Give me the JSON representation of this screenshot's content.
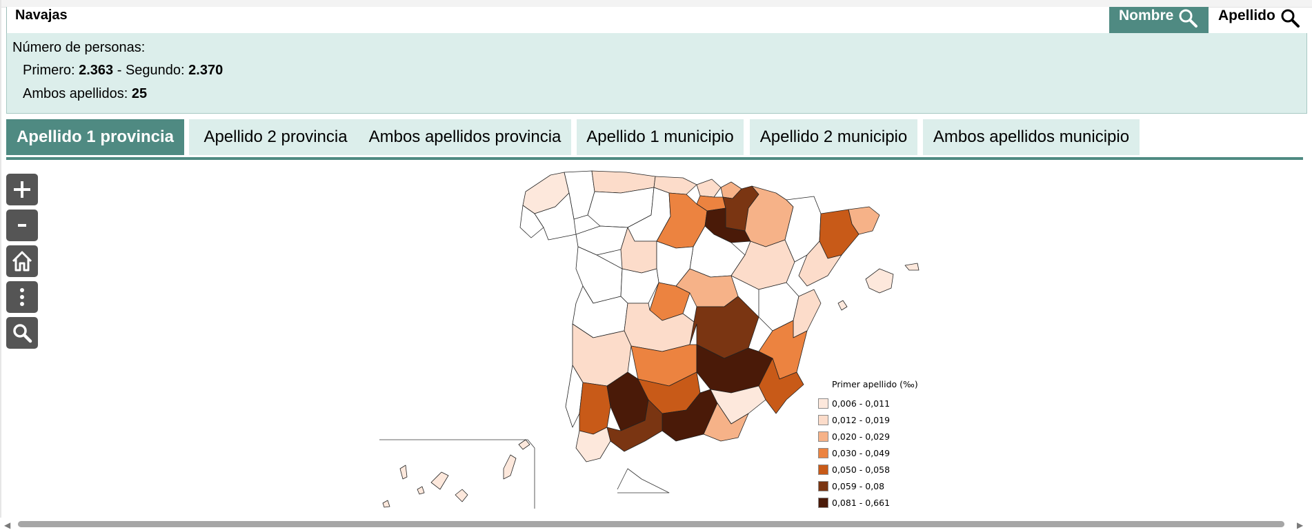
{
  "search": {
    "value": "Navajas"
  },
  "buttons": {
    "nombre": "Nombre",
    "apellido": "Apellido"
  },
  "info": {
    "title": "Número de personas:",
    "primero_label": "Primero: ",
    "primero_value": "2.363",
    "segundo_label": " - Segundo: ",
    "segundo_value": "2.370",
    "ambos_label": "Ambos apellidos: ",
    "ambos_value": "25"
  },
  "tabs": [
    {
      "label": "Apellido 1 provincia",
      "active": true
    },
    {
      "label": "Apellido 2 provincia",
      "active": false
    },
    {
      "label": "Ambos apellidos provincia",
      "active": false
    },
    {
      "label": "Apellido 1 municipio",
      "active": false
    },
    {
      "label": "Apellido 2 municipio",
      "active": false
    },
    {
      "label": "Ambos apellidos municipio",
      "active": false
    }
  ],
  "map_tools": [
    "plus-icon",
    "minus-icon",
    "home-icon",
    "more-vertical-icon",
    "search-icon"
  ],
  "legend": {
    "title": "Primer apellido (‰)",
    "items": [
      {
        "label": "0,006 - 0,011",
        "color": "#fde8dc"
      },
      {
        "label": "0,012 - 0,019",
        "color": "#fcdcca"
      },
      {
        "label": "0,020 - 0,029",
        "color": "#f6b288"
      },
      {
        "label": "0,030 - 0,049",
        "color": "#ec8340"
      },
      {
        "label": "0,050 - 0,058",
        "color": "#c85a18"
      },
      {
        "label": "0,059 - 0,08",
        "color": "#7a3512"
      },
      {
        "label": "0,081 - 0,661",
        "color": "#4a1a08"
      }
    ]
  },
  "colors": {
    "accent": "#4f8a82",
    "panel": "#dceeeb"
  }
}
